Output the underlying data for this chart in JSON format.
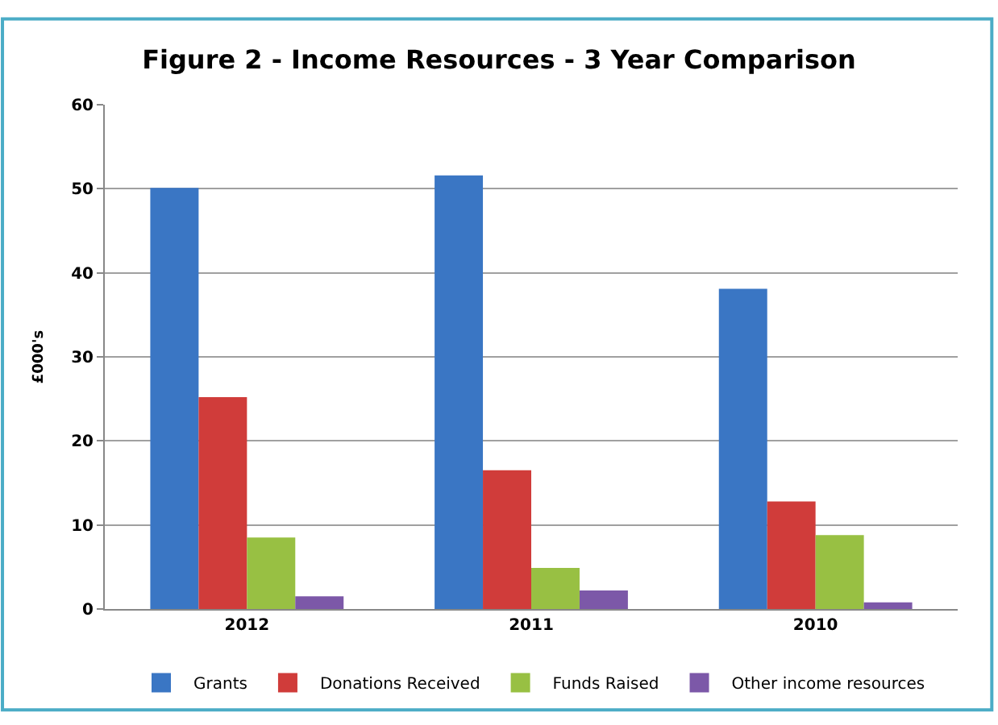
{
  "chart_data": {
    "type": "bar",
    "title": "Figure 2 - Income Resources - 3 Year Comparison",
    "ylabel": "£000's",
    "categories": [
      "2012",
      "2011",
      "2010"
    ],
    "series": [
      {
        "name": "Grants",
        "color": "#3a76c4",
        "values": [
          50.1,
          51.6,
          38.1
        ]
      },
      {
        "name": "Donations Received",
        "color": "#d03c3a",
        "values": [
          25.2,
          16.5,
          12.8
        ]
      },
      {
        "name": "Funds Raised",
        "color": "#98c043",
        "values": [
          8.5,
          4.9,
          8.8
        ]
      },
      {
        "name": "Other income resources",
        "color": "#7c58a8",
        "values": [
          1.5,
          2.2,
          0.8
        ]
      }
    ],
    "ylim": [
      0,
      60
    ],
    "yticks": [
      0,
      10,
      20,
      30,
      40,
      50,
      60
    ],
    "grid": "y",
    "legend": "bottom"
  }
}
